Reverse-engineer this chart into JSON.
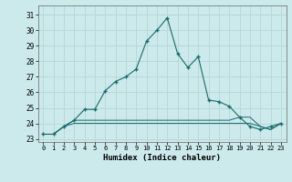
{
  "xlabel": "Humidex (Indice chaleur)",
  "background_color": "#cce9eb",
  "grid_color": "#b8d8da",
  "line_color": "#1a6b6b",
  "xlim": [
    -0.5,
    23.5
  ],
  "ylim": [
    22.8,
    31.6
  ],
  "xticks": [
    0,
    1,
    2,
    3,
    4,
    5,
    6,
    7,
    8,
    9,
    10,
    11,
    12,
    13,
    14,
    15,
    16,
    17,
    18,
    19,
    20,
    21,
    22,
    23
  ],
  "yticks": [
    23,
    24,
    25,
    26,
    27,
    28,
    29,
    30,
    31
  ],
  "series_main": {
    "x": [
      0,
      1,
      2,
      3,
      4,
      5,
      6,
      7,
      8,
      9,
      10,
      11,
      12,
      13,
      14,
      15,
      16,
      17,
      18,
      19,
      20,
      21,
      22,
      23
    ],
    "y": [
      23.3,
      23.3,
      23.8,
      24.2,
      24.9,
      24.9,
      26.1,
      26.7,
      27.0,
      27.5,
      29.3,
      30.0,
      30.8,
      28.5,
      27.6,
      28.3,
      25.5,
      25.4,
      25.1,
      24.4,
      23.8,
      23.6,
      23.8,
      24.0
    ]
  },
  "series_flat1": {
    "x": [
      0,
      1,
      2,
      3,
      4,
      5,
      6,
      7,
      8,
      9,
      10,
      11,
      12,
      13,
      14,
      15,
      16,
      17,
      18,
      19,
      20,
      21,
      22,
      23
    ],
    "y": [
      23.3,
      23.3,
      23.8,
      24.0,
      24.0,
      24.0,
      24.0,
      24.0,
      24.0,
      24.0,
      24.0,
      24.0,
      24.0,
      24.0,
      24.0,
      24.0,
      24.0,
      24.0,
      24.0,
      24.0,
      24.0,
      23.8,
      23.6,
      24.0
    ]
  },
  "series_flat2": {
    "x": [
      0,
      1,
      2,
      3,
      4,
      5,
      6,
      7,
      8,
      9,
      10,
      11,
      12,
      13,
      14,
      15,
      16,
      17,
      18,
      19,
      20,
      21,
      22,
      23
    ],
    "y": [
      23.3,
      23.3,
      23.8,
      24.2,
      24.2,
      24.2,
      24.2,
      24.2,
      24.2,
      24.2,
      24.2,
      24.2,
      24.2,
      24.2,
      24.2,
      24.2,
      24.2,
      24.2,
      24.2,
      24.4,
      24.4,
      23.8,
      23.6,
      24.0
    ]
  }
}
